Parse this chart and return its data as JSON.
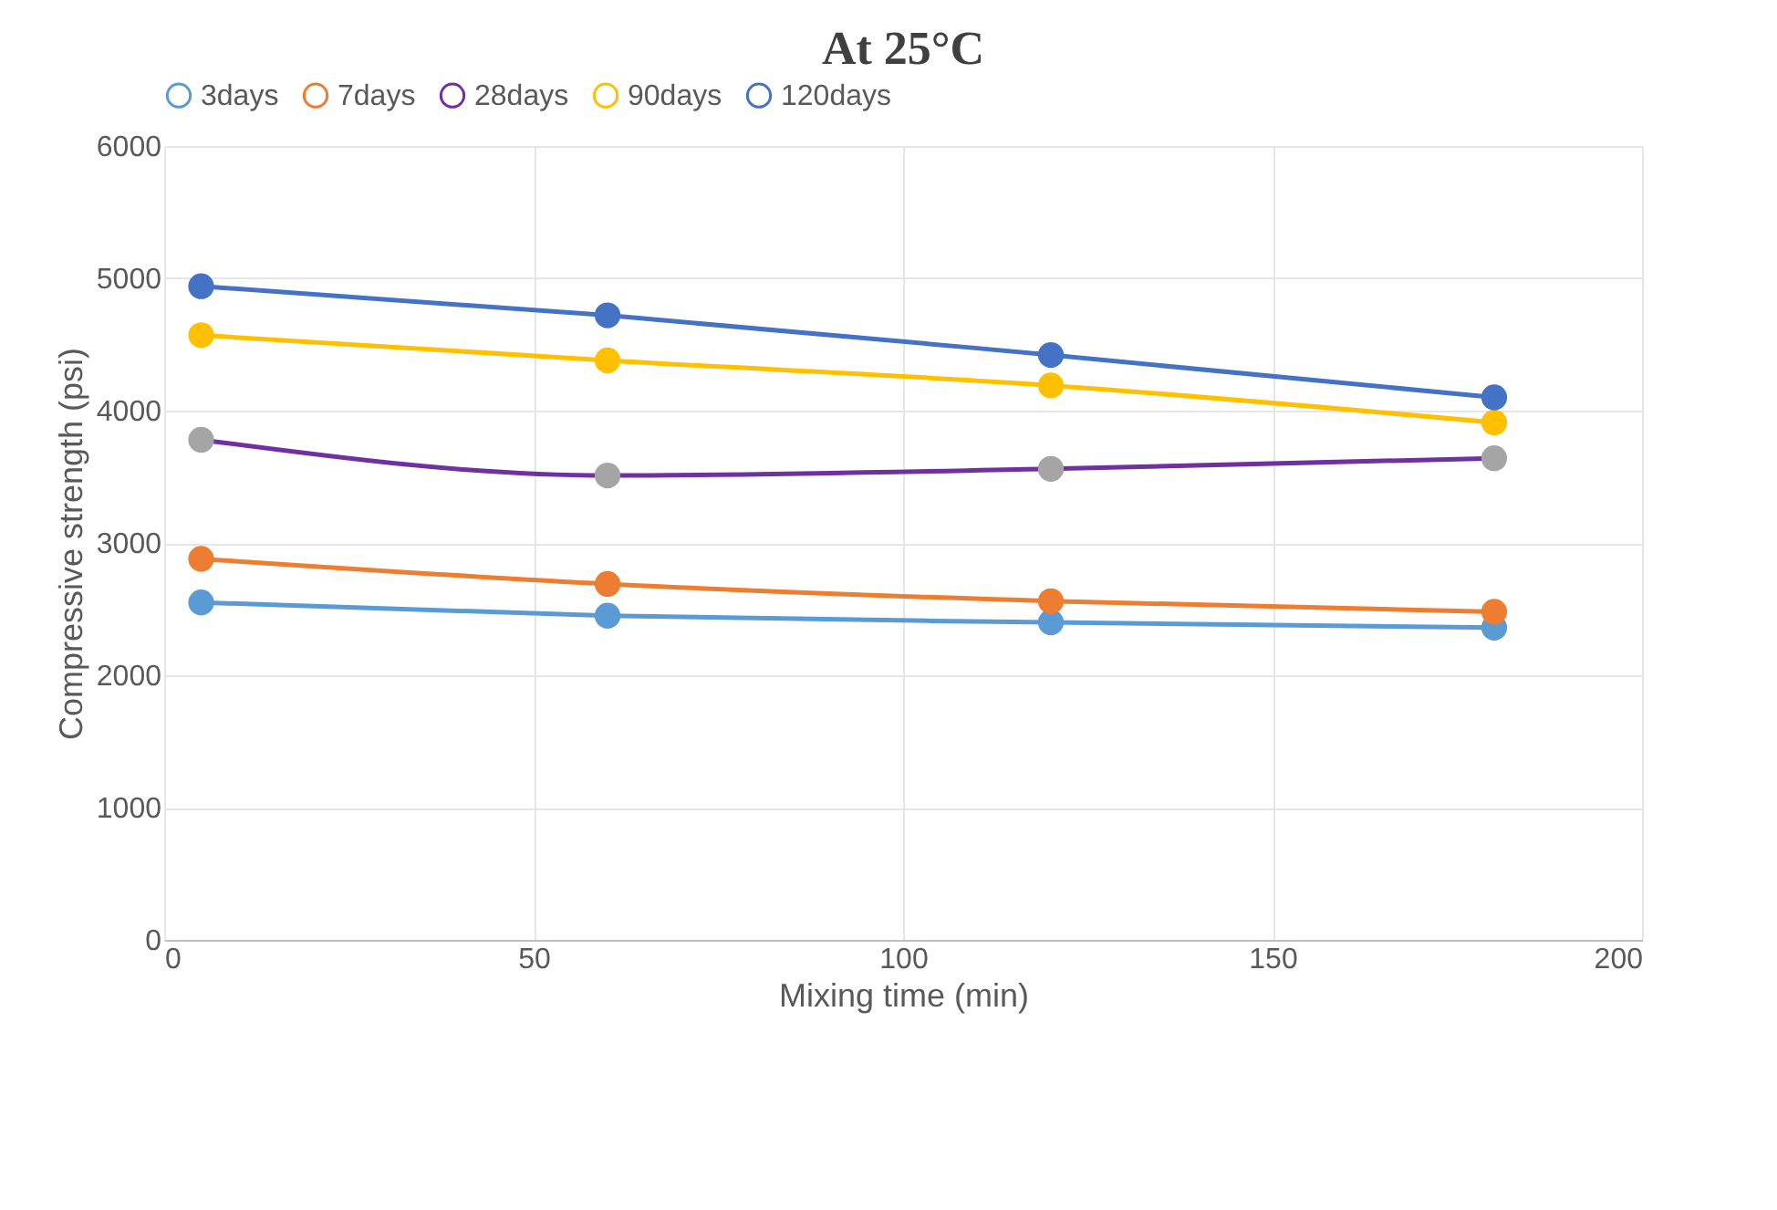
{
  "chart_data": {
    "type": "line",
    "title": "At 25°C",
    "xlabel": "Mixing time (min)",
    "ylabel": "Compressive strength (psi)",
    "x": [
      5,
      60,
      120,
      180
    ],
    "series": [
      {
        "name": "3days",
        "color": "#5b9bd5",
        "values": [
          2550,
          2450,
          2400,
          2360
        ]
      },
      {
        "name": "7days",
        "color": "#ed7d31",
        "values": [
          2880,
          2690,
          2560,
          2480
        ]
      },
      {
        "name": "28days",
        "color": "#7030a0",
        "colors": [
          "#a5a5a5",
          "#a5a5a5",
          "#a5a5a5",
          "#a5a5a5"
        ],
        "values": [
          3780,
          3510,
          3560,
          3640
        ]
      },
      {
        "name": "90days",
        "color": "#ffc000",
        "values": [
          4570,
          4380,
          4190,
          3910
        ]
      },
      {
        "name": "120days",
        "color": "#4472c4",
        "values": [
          4940,
          4720,
          4420,
          4100
        ]
      }
    ],
    "xlim": [
      0,
      200
    ],
    "xticks": [
      0,
      50,
      100,
      150,
      200
    ],
    "ylim": [
      0,
      6000
    ],
    "yticks": [
      0,
      1000,
      2000,
      3000,
      4000,
      5000,
      6000
    ],
    "grid": true,
    "legend": "top",
    "marker": "circle",
    "line_style": "solid"
  }
}
